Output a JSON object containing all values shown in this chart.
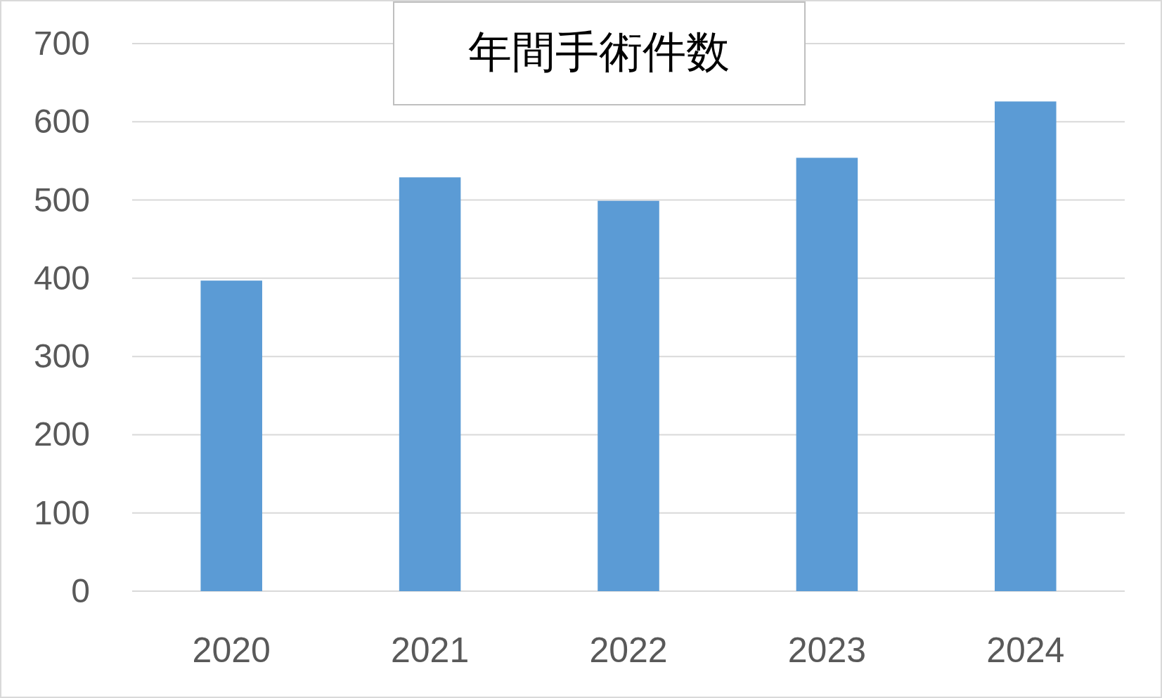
{
  "chart_data": {
    "type": "bar",
    "title": "年間手術件数",
    "categories": [
      "2020",
      "2021",
      "2022",
      "2023",
      "2024"
    ],
    "values": [
      397,
      529,
      499,
      554,
      626
    ],
    "color": "#5b9bd5",
    "ylim": [
      0,
      700
    ],
    "yticks": [
      0,
      100,
      200,
      300,
      400,
      500,
      600,
      700
    ],
    "grid": "y"
  }
}
